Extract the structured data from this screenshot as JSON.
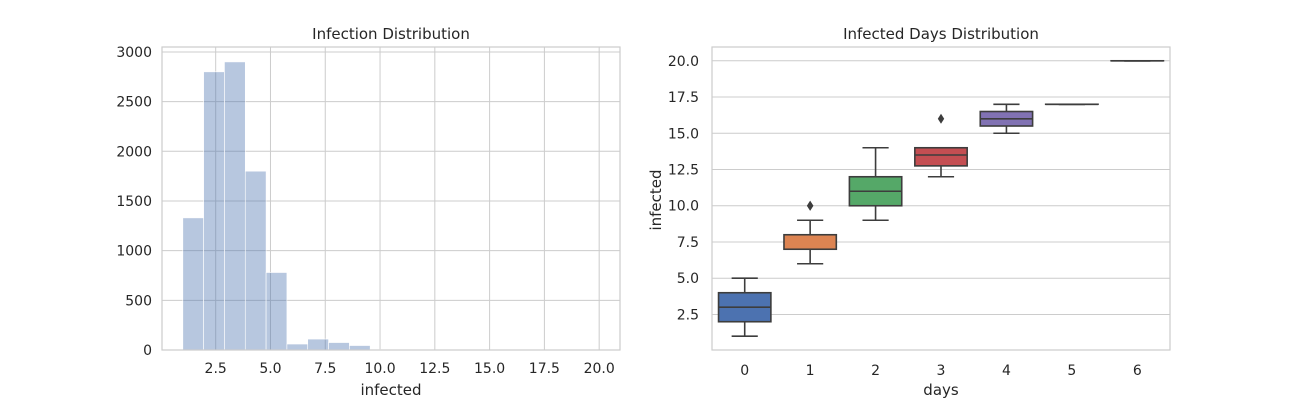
{
  "chart_data": [
    {
      "type": "histogram",
      "title": "Infection Distribution",
      "xlabel": "infected",
      "ylabel": "",
      "xlim": [
        0.05,
        20.95
      ],
      "ylim": [
        0,
        3050
      ],
      "xticks": [
        "2.5",
        "5.0",
        "7.5",
        "10.0",
        "12.5",
        "15.0",
        "17.5",
        "20.0"
      ],
      "yticks": [
        "0",
        "500",
        "1000",
        "1500",
        "2000",
        "2500",
        "3000"
      ],
      "grid": true,
      "bin_width": 0.95,
      "bins": [
        {
          "x0": 1.0,
          "count": 1330
        },
        {
          "x0": 1.95,
          "count": 2800
        },
        {
          "x0": 2.9,
          "count": 2900
        },
        {
          "x0": 3.85,
          "count": 1800
        },
        {
          "x0": 4.8,
          "count": 780
        },
        {
          "x0": 5.75,
          "count": 60
        },
        {
          "x0": 6.7,
          "count": 110
        },
        {
          "x0": 7.65,
          "count": 75
        },
        {
          "x0": 8.6,
          "count": 45
        },
        {
          "x0": 9.55,
          "count": 5
        },
        {
          "x0": 10.5,
          "count": 0
        },
        {
          "x0": 11.45,
          "count": 0
        },
        {
          "x0": 12.4,
          "count": 2
        },
        {
          "x0": 13.35,
          "count": 0
        },
        {
          "x0": 14.3,
          "count": 0
        },
        {
          "x0": 15.25,
          "count": 1
        },
        {
          "x0": 16.2,
          "count": 1
        },
        {
          "x0": 17.15,
          "count": 0
        },
        {
          "x0": 18.1,
          "count": 0
        },
        {
          "x0": 19.05,
          "count": 1
        }
      ],
      "color": "#4c72b0"
    },
    {
      "type": "box",
      "title": "Infected Days Distribution",
      "xlabel": "days",
      "ylabel": "infected",
      "categories": [
        "0",
        "1",
        "2",
        "3",
        "4",
        "5",
        "6"
      ],
      "yticks": [
        "2.5",
        "5.0",
        "7.5",
        "10.0",
        "12.5",
        "15.0",
        "17.5",
        "20.0"
      ],
      "ylim": [
        0.05,
        20.95
      ],
      "grid": true,
      "boxes": [
        {
          "category": "0",
          "whislo": 1.0,
          "q1": 2.0,
          "med": 3.0,
          "q3": 4.0,
          "whishi": 5.0,
          "fliers": [],
          "color": "#4c72b0"
        },
        {
          "category": "1",
          "whislo": 6.0,
          "q1": 7.0,
          "med": 7.0,
          "q3": 8.0,
          "whishi": 9.0,
          "fliers": [
            10.0,
            10.0
          ],
          "color": "#dd8452"
        },
        {
          "category": "2",
          "whislo": 9.0,
          "q1": 10.0,
          "med": 11.0,
          "q3": 12.0,
          "whishi": 14.0,
          "fliers": [],
          "color": "#55a868"
        },
        {
          "category": "3",
          "whislo": 12.0,
          "q1": 12.75,
          "med": 13.5,
          "q3": 14.0,
          "whishi": 14.0,
          "fliers": [
            16.0
          ],
          "color": "#c44e52"
        },
        {
          "category": "4",
          "whislo": 15.0,
          "q1": 15.5,
          "med": 16.0,
          "q3": 16.5,
          "whishi": 17.0,
          "fliers": [],
          "color": "#8172b3"
        },
        {
          "category": "5",
          "whislo": 17.0,
          "q1": 17.0,
          "med": 17.0,
          "q3": 17.0,
          "whishi": 17.0,
          "fliers": [],
          "color": "#937860"
        },
        {
          "category": "6",
          "whislo": 20.0,
          "q1": 20.0,
          "med": 20.0,
          "q3": 20.0,
          "whishi": 20.0,
          "fliers": [],
          "color": "#da8bc3"
        }
      ]
    }
  ]
}
